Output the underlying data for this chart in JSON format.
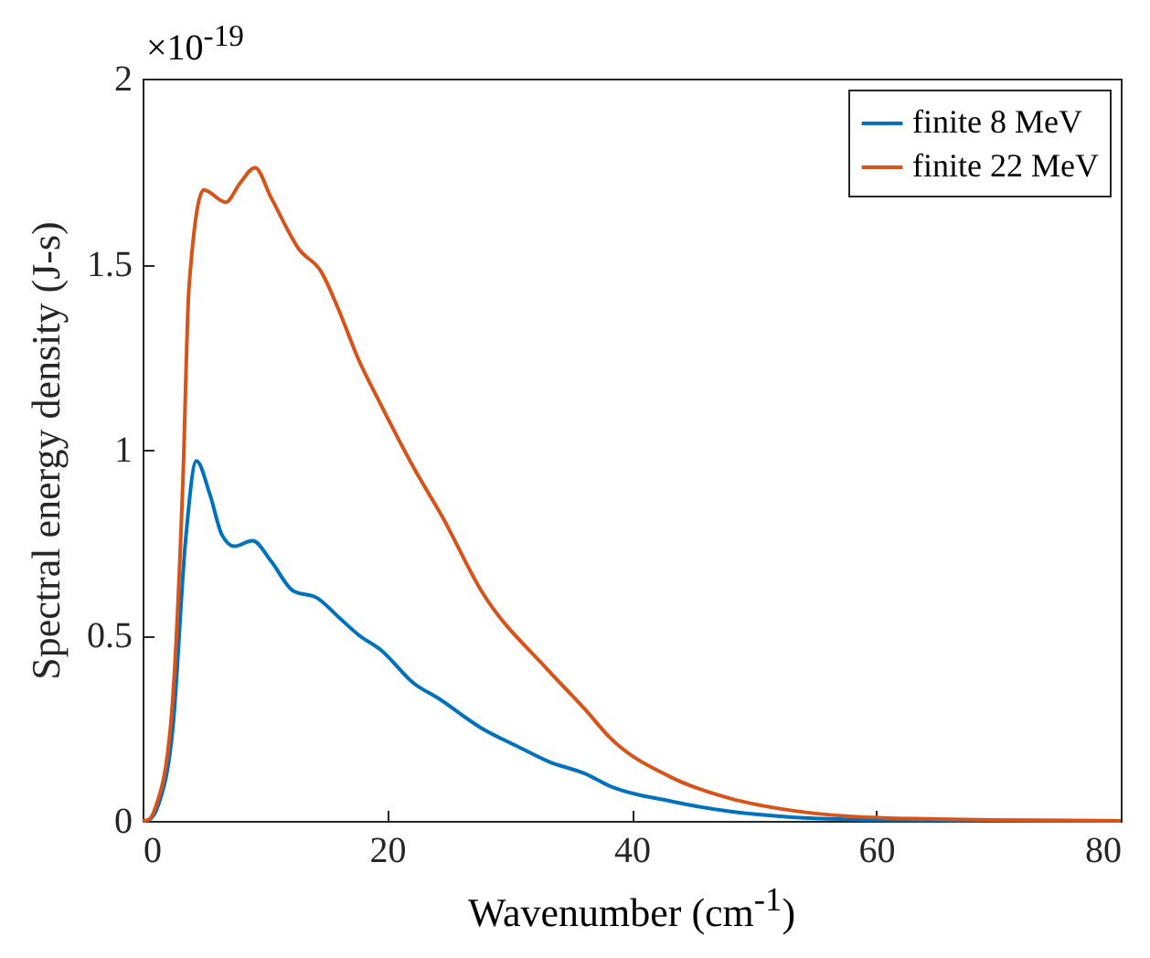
{
  "chart_data": {
    "type": "line",
    "xlabel": "Wavenumber (cm$^{-1}$)",
    "ylabel": "Spectral energy density (J-s)",
    "annotations": [
      "×10$^{-19}$"
    ],
    "xlim": [
      0,
      80
    ],
    "ylim": [
      0,
      2
    ],
    "xticks": [
      0,
      20,
      40,
      60,
      80
    ],
    "yticks": [
      0,
      0.5,
      1,
      1.5,
      2
    ],
    "grid": false,
    "legend": "top right",
    "marker": "none",
    "line_style": "solid",
    "series": [
      {
        "name": "finite 8 MeV",
        "color": "#0072bd",
        "x": [
          0,
          0.5,
          1.3,
          2.5,
          3.5,
          4.4,
          5.5,
          6.5,
          7.5,
          9.0,
          10.5,
          12.3,
          14.3,
          16,
          17.7,
          19.5,
          22.2,
          24.2,
          27.7,
          30.7,
          33.2,
          36.2,
          38.2,
          43.2,
          48.1,
          53.1,
          60,
          70,
          80
        ],
        "values": [
          0,
          0.003,
          0.044,
          0.26,
          0.75,
          0.97,
          0.88,
          0.77,
          0.74,
          0.755,
          0.7,
          0.62,
          0.6,
          0.55,
          0.5,
          0.46,
          0.37,
          0.33,
          0.25,
          0.2,
          0.16,
          0.127,
          0.094,
          0.053,
          0.025,
          0.01,
          0.003,
          0.001,
          0
        ]
      },
      {
        "name": "finite 22 MeV",
        "color": "#d95319",
        "x": [
          0,
          0.5,
          1.05,
          2.3,
          3.3,
          3.8,
          5.0,
          6.8,
          8.0,
          9.2,
          10.5,
          12.8,
          14.6,
          16,
          17.7,
          19.2,
          22.2,
          24.5,
          27.7,
          33.2,
          36.2,
          38.2,
          43.2,
          48.1,
          53.1,
          58,
          64.8,
          70,
          80
        ],
        "values": [
          0,
          0.003,
          0.036,
          0.26,
          0.92,
          1.44,
          1.7,
          1.667,
          1.72,
          1.76,
          1.68,
          1.54,
          1.48,
          1.38,
          1.24,
          1.14,
          0.95,
          0.82,
          0.62,
          0.405,
          0.3,
          0.225,
          0.118,
          0.06,
          0.028,
          0.012,
          0.005,
          0.002,
          0
        ]
      }
    ]
  }
}
